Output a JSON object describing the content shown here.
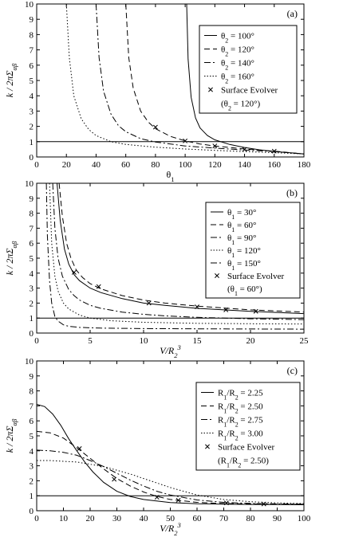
{
  "chart_data": [
    {
      "type": "line",
      "panel_label": "(a)",
      "xlabel": "θ1",
      "ylabel": "k / 2πΣαβ",
      "xlim": [
        0,
        180
      ],
      "ylim": [
        0,
        10
      ],
      "xticks": [
        0,
        20,
        40,
        60,
        80,
        100,
        120,
        140,
        160,
        180
      ],
      "yticks": [
        0,
        1,
        2,
        3,
        4,
        5,
        6,
        7,
        8,
        9,
        10
      ],
      "grid": false,
      "legend_position": "top-right",
      "series": [
        {
          "name": "θ2 = 100°",
          "style": "solid",
          "x": [
            101,
            102,
            104,
            107,
            110,
            115,
            120,
            130,
            140,
            150,
            160,
            170,
            180
          ],
          "y": [
            10,
            6.4,
            3.9,
            2.55,
            1.9,
            1.4,
            1.12,
            0.82,
            0.62,
            0.47,
            0.36,
            0.28,
            0.2
          ]
        },
        {
          "name": "θ2 = 120°",
          "style": "dashed",
          "x": [
            60,
            62,
            65,
            70,
            75,
            80,
            90,
            100,
            110,
            120,
            140,
            160,
            180
          ],
          "y": [
            10,
            6.5,
            4.5,
            3.0,
            2.3,
            1.85,
            1.35,
            1.05,
            0.85,
            0.72,
            0.52,
            0.38,
            0.2
          ]
        },
        {
          "name": "θ2 = 140°",
          "style": "dashdot",
          "x": [
            40,
            42,
            45,
            50,
            55,
            60,
            70,
            80,
            100,
            120,
            140,
            160,
            180
          ],
          "y": [
            10,
            6.5,
            4.3,
            2.8,
            2.05,
            1.65,
            1.2,
            0.98,
            0.72,
            0.58,
            0.46,
            0.35,
            0.2
          ]
        },
        {
          "name": "θ2 = 160°",
          "style": "dotted",
          "x": [
            20,
            22,
            25,
            30,
            35,
            40,
            50,
            60,
            80,
            100,
            120,
            140,
            160,
            180
          ],
          "y": [
            10,
            6.5,
            4.0,
            2.5,
            1.8,
            1.4,
            1.0,
            0.82,
            0.64,
            0.52,
            0.43,
            0.35,
            0.28,
            0.2
          ]
        },
        {
          "name": "Surface Evolver",
          "style": "x-marker",
          "x": [
            80,
            100,
            120,
            140,
            160
          ],
          "y": [
            1.95,
            1.05,
            0.72,
            0.5,
            0.38
          ]
        }
      ],
      "legend": [
        "θ2 = 100°",
        "θ2 = 120°",
        "θ2 = 140°",
        "θ2 = 160°",
        "Surface Evolver",
        "(θ2 = 120°)"
      ],
      "reference_line_y": 1
    },
    {
      "type": "line",
      "panel_label": "(b)",
      "xlabel": "V/R2³",
      "ylabel": "k / 2πΣαβ",
      "xlim": [
        0,
        25
      ],
      "ylim": [
        0,
        10
      ],
      "xticks": [
        0,
        5,
        10,
        15,
        20,
        25
      ],
      "yticks": [
        0,
        1,
        2,
        3,
        4,
        5,
        6,
        7,
        8,
        9,
        10
      ],
      "grid": false,
      "legend_position": "top-right",
      "series": [
        {
          "name": "θ1 = 30°",
          "style": "solid",
          "x": [
            1.9,
            2.2,
            2.6,
            3.0,
            3.5,
            4,
            5,
            6,
            8,
            10,
            12,
            15,
            20,
            25
          ],
          "y": [
            10,
            7.5,
            5.6,
            4.6,
            3.9,
            3.5,
            3.0,
            2.7,
            2.3,
            2.0,
            1.85,
            1.65,
            1.45,
            1.3
          ]
        },
        {
          "name": "θ1 = 60°",
          "style": "dashed",
          "x": [
            2.1,
            2.4,
            2.8,
            3.2,
            3.7,
            4.3,
            5,
            6,
            8,
            10,
            12,
            15,
            20,
            25
          ],
          "y": [
            10,
            7.8,
            6.0,
            5.0,
            4.2,
            3.7,
            3.3,
            2.95,
            2.5,
            2.2,
            2.0,
            1.8,
            1.55,
            1.4
          ]
        },
        {
          "name": "θ1 = 90°",
          "style": "dashdot",
          "x": [
            1.5,
            1.7,
            2.0,
            2.4,
            3.0,
            3.5,
            4,
            5,
            6,
            8,
            10,
            12,
            15,
            20,
            25
          ],
          "y": [
            10,
            7.0,
            5.0,
            3.8,
            2.9,
            2.5,
            2.2,
            1.85,
            1.65,
            1.4,
            1.25,
            1.15,
            1.05,
            0.95,
            0.9
          ]
        },
        {
          "name": "θ1 = 120°",
          "style": "dotted",
          "x": [
            1.2,
            1.4,
            1.7,
            2.0,
            2.5,
            3,
            4,
            5,
            7,
            10,
            15,
            20,
            25
          ],
          "y": [
            10,
            6.0,
            3.8,
            2.8,
            2.0,
            1.6,
            1.2,
            1.0,
            0.82,
            0.72,
            0.65,
            0.62,
            0.6
          ]
        },
        {
          "name": "θ1 = 150°",
          "style": "dashdot",
          "x": [
            0.9,
            1.0,
            1.2,
            1.4,
            1.7,
            2.0,
            2.5,
            3,
            4,
            6,
            10,
            15,
            20,
            25
          ],
          "y": [
            10,
            6.5,
            3.5,
            2.0,
            1.1,
            0.8,
            0.55,
            0.45,
            0.38,
            0.33,
            0.3,
            0.28,
            0.27,
            0.26
          ]
        },
        {
          "name": "Surface Evolver",
          "style": "x-marker",
          "x": [
            3.5,
            5.8,
            10.5,
            15,
            17.7,
            20.5
          ],
          "y": [
            4.05,
            3.1,
            2.0,
            1.75,
            1.55,
            1.45
          ]
        }
      ],
      "legend": [
        "θ1 = 30°",
        "θ1 = 60°",
        "θ1 = 90°",
        "θ1 = 120°",
        "θ1 = 150°",
        "Surface Evolver",
        "(θ1 = 60°)"
      ],
      "reference_line_y": 1
    },
    {
      "type": "line",
      "panel_label": "(c)",
      "xlabel": "V/R2³",
      "ylabel": "k / 2πΣαβ",
      "xlim": [
        0,
        100
      ],
      "ylim": [
        0,
        10
      ],
      "xticks": [
        0,
        10,
        20,
        30,
        40,
        50,
        60,
        70,
        80,
        90,
        100
      ],
      "yticks": [
        0,
        1,
        2,
        3,
        4,
        5,
        6,
        7,
        8,
        9,
        10
      ],
      "grid": false,
      "legend_position": "top-right",
      "series": [
        {
          "name": "R1/R2 = 2.25",
          "style": "solid",
          "x": [
            0,
            3,
            6,
            9,
            12,
            15,
            18,
            21,
            25,
            30,
            35,
            40,
            50,
            60,
            70,
            80,
            90,
            100
          ],
          "y": [
            7.1,
            6.95,
            6.45,
            5.7,
            4.8,
            4.0,
            3.25,
            2.6,
            1.9,
            1.3,
            0.95,
            0.75,
            0.55,
            0.47,
            0.44,
            0.42,
            0.41,
            0.4
          ]
        },
        {
          "name": "R1/R2 = 2.50",
          "style": "dashed",
          "x": [
            0,
            5,
            10,
            15,
            20,
            25,
            30,
            35,
            40,
            45,
            50,
            60,
            70,
            80,
            90,
            100
          ],
          "y": [
            5.3,
            5.2,
            4.85,
            4.2,
            3.5,
            2.8,
            2.15,
            1.65,
            1.25,
            0.95,
            0.75,
            0.56,
            0.48,
            0.45,
            0.43,
            0.42
          ]
        },
        {
          "name": "R1/R2 = 2.75",
          "style": "dashdot",
          "x": [
            0,
            5,
            10,
            15,
            20,
            25,
            30,
            35,
            40,
            45,
            50,
            60,
            70,
            80,
            90,
            100
          ],
          "y": [
            4.05,
            4.0,
            3.9,
            3.7,
            3.35,
            2.95,
            2.5,
            2.05,
            1.65,
            1.3,
            1.05,
            0.72,
            0.56,
            0.49,
            0.46,
            0.44
          ]
        },
        {
          "name": "R1/R2 = 3.00",
          "style": "dotted",
          "x": [
            0,
            5,
            10,
            15,
            20,
            25,
            30,
            35,
            40,
            45,
            50,
            55,
            60,
            70,
            80,
            90,
            100
          ],
          "y": [
            3.35,
            3.35,
            3.3,
            3.25,
            3.1,
            2.95,
            2.7,
            2.45,
            2.15,
            1.85,
            1.55,
            1.3,
            1.05,
            0.75,
            0.6,
            0.52,
            0.48
          ]
        },
        {
          "name": "Surface Evolver",
          "style": "x-marker",
          "x": [
            16,
            29,
            45,
            53,
            71,
            85
          ],
          "y": [
            4.15,
            2.1,
            0.9,
            0.7,
            0.52,
            0.45
          ]
        }
      ],
      "legend": [
        "R1/R2 = 2.25",
        "R1/R2 = 2.50",
        "R1/R2 = 2.75",
        "R1/R2 = 3.00",
        "Surface Evolver",
        "(R1/R2 = 2.50)"
      ],
      "reference_line_y": 1
    }
  ]
}
